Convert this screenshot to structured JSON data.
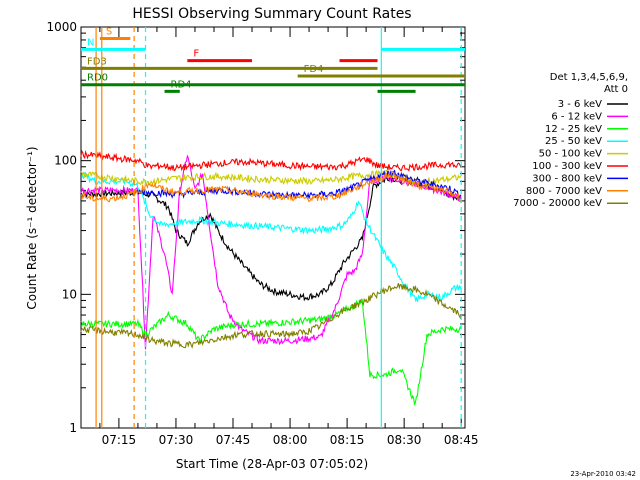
{
  "chart_data": {
    "type": "line",
    "title": "HESSI Observing Summary Count Rates",
    "xlabel": "Start Time (28-Apr-03 07:05:02)",
    "ylabel": "Count Rate (s⁻¹ detector⁻¹)",
    "y_scale": "log",
    "ylim": [
      1,
      1000
    ],
    "xlim": [
      "07:05:02",
      "08:46:00"
    ],
    "y_ticks": [
      "1",
      "10",
      "100",
      "1000"
    ],
    "x_ticks": [
      "07:15",
      "07:30",
      "07:45",
      "08:00",
      "08:15",
      "08:30",
      "08:45"
    ],
    "footer": "23-Apr-2010 03:42",
    "legend": {
      "placement": "right",
      "header": [
        "Det 1,3,4,5,6,9,",
        "Att 0"
      ]
    },
    "series": [
      {
        "name": "3 - 6 keV",
        "color": "#000000",
        "points": [
          [
            "07:05",
            56
          ],
          [
            "07:20",
            58
          ],
          [
            "07:24",
            55
          ],
          [
            "07:28",
            45
          ],
          [
            "07:30",
            30
          ],
          [
            "07:33",
            24
          ],
          [
            "07:36",
            35
          ],
          [
            "07:39",
            40
          ],
          [
            "07:41",
            30
          ],
          [
            "07:44",
            22
          ],
          [
            "07:48",
            16
          ],
          [
            "07:52",
            12
          ],
          [
            "07:56",
            10.5
          ],
          [
            "08:00",
            10
          ],
          [
            "08:04",
            9.5
          ],
          [
            "08:08",
            10
          ],
          [
            "08:11",
            12
          ],
          [
            "08:14",
            17
          ],
          [
            "08:17",
            22
          ],
          [
            "08:19",
            26
          ],
          [
            "08:22",
            65
          ],
          [
            "08:26",
            75
          ],
          [
            "08:30",
            70
          ],
          [
            "08:34",
            68
          ],
          [
            "08:38",
            63
          ],
          [
            "08:42",
            55
          ],
          [
            "08:45",
            52
          ]
        ]
      },
      {
        "name": "6 - 12 keV",
        "color": "#ff00ff",
        "points": [
          [
            "07:05",
            60
          ],
          [
            "07:20",
            60
          ],
          [
            "07:22",
            4
          ],
          [
            "07:24",
            40
          ],
          [
            "07:27",
            20
          ],
          [
            "07:29",
            10
          ],
          [
            "07:31",
            60
          ],
          [
            "07:33",
            110
          ],
          [
            "07:35",
            60
          ],
          [
            "07:37",
            80
          ],
          [
            "07:39",
            30
          ],
          [
            "07:41",
            12
          ],
          [
            "07:44",
            7
          ],
          [
            "07:47",
            5.5
          ],
          [
            "07:52",
            4.5
          ],
          [
            "08:00",
            4.5
          ],
          [
            "08:08",
            4.8
          ],
          [
            "08:12",
            8
          ],
          [
            "08:15",
            14
          ],
          [
            "08:17",
            15
          ],
          [
            "08:19",
            20
          ],
          [
            "08:21",
            70
          ],
          [
            "08:25",
            75
          ],
          [
            "08:30",
            70
          ],
          [
            "08:35",
            65
          ],
          [
            "08:40",
            58
          ],
          [
            "08:45",
            52
          ]
        ]
      },
      {
        "name": "12 - 25 keV",
        "color": "#00ff00",
        "points": [
          [
            "07:05",
            6
          ],
          [
            "07:20",
            6
          ],
          [
            "07:22",
            5
          ],
          [
            "07:28",
            7
          ],
          [
            "07:33",
            6
          ],
          [
            "07:36",
            4.5
          ],
          [
            "07:40",
            5.5
          ],
          [
            "07:46",
            6
          ],
          [
            "07:52",
            6
          ],
          [
            "08:00",
            6.2
          ],
          [
            "08:08",
            6.5
          ],
          [
            "08:12",
            7
          ],
          [
            "08:16",
            8
          ],
          [
            "08:19",
            9
          ],
          [
            "08:21",
            2.5
          ],
          [
            "08:25",
            2.5
          ],
          [
            "08:29",
            2.8
          ],
          [
            "08:33",
            1.5
          ],
          [
            "08:36",
            5
          ],
          [
            "08:40",
            5.5
          ],
          [
            "08:45",
            5.5
          ]
        ]
      },
      {
        "name": "25 - 50 keV",
        "color": "#00ffff",
        "points": [
          [
            "07:05",
            80
          ],
          [
            "07:09",
            70
          ],
          [
            "07:13",
            70
          ],
          [
            "07:17",
            70
          ],
          [
            "07:20",
            65
          ],
          [
            "07:23",
            40
          ],
          [
            "07:26",
            33
          ],
          [
            "07:30",
            34
          ],
          [
            "07:36",
            36
          ],
          [
            "07:42",
            34
          ],
          [
            "07:48",
            33
          ],
          [
            "07:54",
            32
          ],
          [
            "08:00",
            31
          ],
          [
            "08:06",
            30
          ],
          [
            "08:10",
            31
          ],
          [
            "08:14",
            33
          ],
          [
            "08:16",
            38
          ],
          [
            "08:18",
            50
          ],
          [
            "08:20",
            35
          ],
          [
            "08:24",
            22
          ],
          [
            "08:28",
            15
          ],
          [
            "08:30",
            12
          ],
          [
            "08:33",
            9
          ],
          [
            "08:36",
            10
          ],
          [
            "08:40",
            9.5
          ],
          [
            "08:43",
            11
          ],
          [
            "08:45",
            11.5
          ]
        ]
      },
      {
        "name": "50 - 100 keV",
        "color": "#cccc00",
        "points": [
          [
            "07:05",
            80
          ],
          [
            "07:20",
            70
          ],
          [
            "07:24",
            70
          ],
          [
            "07:30",
            74
          ],
          [
            "07:36",
            76
          ],
          [
            "07:42",
            76
          ],
          [
            "07:48",
            74
          ],
          [
            "07:54",
            72
          ],
          [
            "08:00",
            71
          ],
          [
            "08:06",
            70
          ],
          [
            "08:12",
            72
          ],
          [
            "08:16",
            76
          ],
          [
            "08:20",
            78
          ],
          [
            "08:24",
            80
          ],
          [
            "08:27",
            80
          ],
          [
            "08:30",
            75
          ],
          [
            "08:34",
            68
          ],
          [
            "08:37",
            70
          ],
          [
            "08:40",
            72
          ],
          [
            "08:43",
            74
          ],
          [
            "08:45",
            75
          ]
        ]
      },
      {
        "name": "100 - 300 keV",
        "color": "#ff0000",
        "points": [
          [
            "07:05",
            112
          ],
          [
            "07:20",
            100
          ],
          [
            "07:23",
            90
          ],
          [
            "07:26",
            92
          ],
          [
            "07:30",
            88
          ],
          [
            "07:36",
            92
          ],
          [
            "07:42",
            96
          ],
          [
            "07:48",
            98
          ],
          [
            "07:54",
            95
          ],
          [
            "08:00",
            92
          ],
          [
            "08:06",
            90
          ],
          [
            "08:12",
            90
          ],
          [
            "08:15",
            93
          ],
          [
            "08:18",
            100
          ],
          [
            "08:20",
            103
          ],
          [
            "08:23",
            92
          ],
          [
            "08:28",
            88
          ],
          [
            "08:33",
            90
          ],
          [
            "08:38",
            92
          ],
          [
            "08:42",
            94
          ],
          [
            "08:45",
            90
          ]
        ]
      },
      {
        "name": "300 - 800 keV",
        "color": "#0000ff",
        "points": [
          [
            "07:20",
            58
          ],
          [
            "07:24",
            58
          ],
          [
            "07:30",
            56
          ],
          [
            "07:36",
            58
          ],
          [
            "07:42",
            60
          ],
          [
            "07:48",
            58
          ],
          [
            "07:54",
            56
          ],
          [
            "08:00",
            55
          ],
          [
            "08:06",
            55
          ],
          [
            "08:12",
            57
          ],
          [
            "08:16",
            62
          ],
          [
            "08:20",
            70
          ],
          [
            "08:24",
            78
          ],
          [
            "08:27",
            82
          ],
          [
            "08:30",
            76
          ],
          [
            "08:34",
            70
          ],
          [
            "08:38",
            66
          ],
          [
            "08:42",
            62
          ],
          [
            "08:45",
            55
          ]
        ]
      },
      {
        "name": "800 - 7000 keV",
        "color": "#ff8000",
        "points": [
          [
            "07:05",
            55
          ],
          [
            "07:08",
            52
          ],
          [
            "07:13",
            52
          ],
          [
            "07:17",
            55
          ],
          [
            "07:20",
            58
          ],
          [
            "07:23",
            68
          ],
          [
            "07:26",
            62
          ],
          [
            "07:30",
            58
          ],
          [
            "07:36",
            60
          ],
          [
            "07:42",
            61
          ],
          [
            "07:48",
            58
          ],
          [
            "07:54",
            55
          ],
          [
            "08:00",
            53
          ],
          [
            "08:06",
            52
          ],
          [
            "08:12",
            54
          ],
          [
            "08:16",
            60
          ],
          [
            "08:20",
            68
          ],
          [
            "08:24",
            74
          ],
          [
            "08:27",
            80
          ],
          [
            "08:30",
            72
          ],
          [
            "08:34",
            65
          ],
          [
            "08:38",
            62
          ],
          [
            "08:42",
            58
          ],
          [
            "08:45",
            52
          ]
        ]
      },
      {
        "name": "7000 - 20000 keV",
        "color": "#808000",
        "points": [
          [
            "07:05",
            5.5
          ],
          [
            "07:20",
            5
          ],
          [
            "07:24",
            4.5
          ],
          [
            "07:28",
            4.3
          ],
          [
            "07:34",
            4.2
          ],
          [
            "07:40",
            4.6
          ],
          [
            "07:46",
            5
          ],
          [
            "07:52",
            5.1
          ],
          [
            "07:58",
            5
          ],
          [
            "08:04",
            5.2
          ],
          [
            "08:08",
            5.8
          ],
          [
            "08:12",
            7
          ],
          [
            "08:16",
            8
          ],
          [
            "08:20",
            9
          ],
          [
            "08:24",
            10.5
          ],
          [
            "08:28",
            11.5
          ],
          [
            "08:32",
            11
          ],
          [
            "08:36",
            10
          ],
          [
            "08:40",
            8.5
          ],
          [
            "08:45",
            7
          ]
        ]
      }
    ],
    "flag_bars": [
      {
        "label": "S",
        "color": "#ff8000",
        "level": 820,
        "start": "07:10",
        "end": "07:18"
      },
      {
        "label": "N",
        "color": "#00ffff",
        "level": 680,
        "start": "07:05",
        "end": "07:22"
      },
      {
        "label": "",
        "color": "#00ffff",
        "level": 680,
        "start": "08:24",
        "end": "08:46"
      },
      {
        "label": "F",
        "color": "#ff0000",
        "level": 560,
        "start": "07:33",
        "end": "07:50"
      },
      {
        "label": "",
        "color": "#ff0000",
        "level": 560,
        "start": "08:13",
        "end": "08:23"
      },
      {
        "label": "FD3",
        "color": "#808000",
        "level": 490,
        "start": "07:05",
        "end": "08:23"
      },
      {
        "label": "FD4",
        "color": "#808000",
        "level": 430,
        "start": "08:02",
        "end": "08:46"
      },
      {
        "label": "RD0",
        "color": "#008000",
        "level": 370,
        "start": "07:05",
        "end": "08:46"
      },
      {
        "label": "RD4",
        "color": "#008000",
        "level": 330,
        "start": "07:27",
        "end": "07:31"
      },
      {
        "label": "",
        "color": "#008000",
        "level": 330,
        "start": "08:23",
        "end": "08:33"
      }
    ],
    "time_markers": [
      {
        "time": "07:09",
        "color": "#ff8000",
        "style": "solid"
      },
      {
        "time": "07:10.5",
        "color": "#ff8000",
        "style": "solid"
      },
      {
        "time": "07:19",
        "color": "#ff8000",
        "style": "dashed"
      },
      {
        "time": "07:22",
        "color": "#00ffff",
        "style": "dashed"
      },
      {
        "time": "08:24",
        "color": "#00ffff",
        "style": "solid"
      },
      {
        "time": "08:45",
        "color": "#00ffff",
        "style": "dashed"
      }
    ]
  }
}
